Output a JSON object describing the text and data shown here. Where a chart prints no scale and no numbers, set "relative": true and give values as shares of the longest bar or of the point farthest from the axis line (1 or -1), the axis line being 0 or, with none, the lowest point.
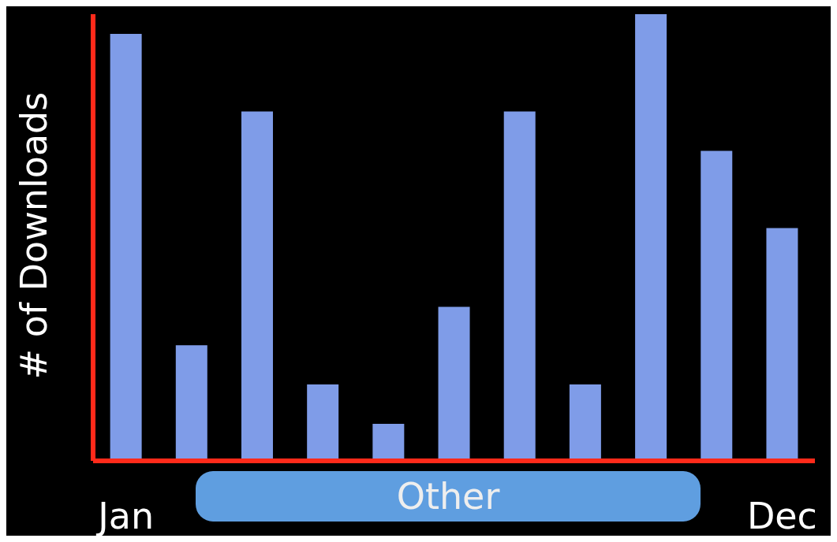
{
  "chart_data": {
    "type": "bar",
    "relative": true,
    "ylabel": "# of Downloads",
    "categories": [
      "Jan",
      null,
      null,
      null,
      null,
      null,
      null,
      null,
      null,
      null,
      "Dec"
    ],
    "values": [
      0.956,
      0.259,
      0.782,
      0.171,
      0.083,
      0.345,
      0.782,
      0.171,
      1,
      0.694,
      0.521
    ],
    "color": "#7f9ce8",
    "annotations": [
      "Other"
    ],
    "grid": false,
    "legend": false
  }
}
